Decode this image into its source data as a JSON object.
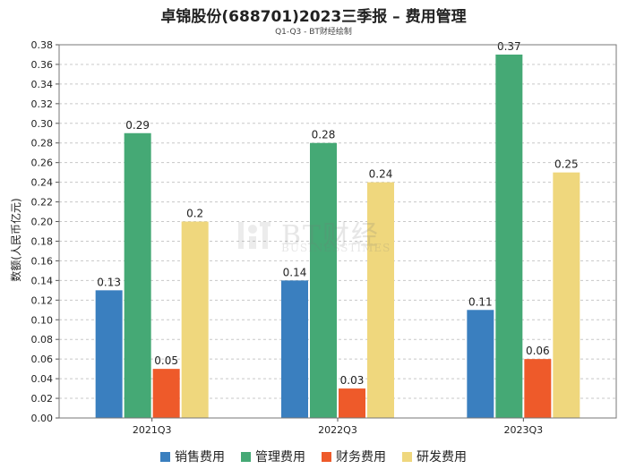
{
  "chart_data": {
    "type": "bar",
    "title": "卓锦股份(688701)2023三季报 – 费用管理",
    "subtitle": "Q1-Q3 - BT财经绘制",
    "ylabel": "数额(人民币亿元)",
    "xlabel": "",
    "categories": [
      "2021Q3",
      "2022Q3",
      "2023Q3"
    ],
    "ylim": [
      0,
      0.38
    ],
    "yticks": [
      "0.00",
      "0.02",
      "0.04",
      "0.06",
      "0.08",
      "0.10",
      "0.12",
      "0.14",
      "0.16",
      "0.18",
      "0.20",
      "0.22",
      "0.24",
      "0.26",
      "0.28",
      "0.30",
      "0.32",
      "0.34",
      "0.36",
      "0.38"
    ],
    "grid": true,
    "legend_position": "bottom",
    "series": [
      {
        "name": "销售费用",
        "color": "#3a7fbf",
        "values": [
          0.13,
          0.14,
          0.11
        ],
        "labels": [
          "0.13",
          "0.14",
          "0.11"
        ]
      },
      {
        "name": "管理费用",
        "color": "#45a975",
        "values": [
          0.29,
          0.28,
          0.37
        ],
        "labels": [
          "0.29",
          "0.28",
          "0.37"
        ]
      },
      {
        "name": "财务费用",
        "color": "#ee5a2a",
        "values": [
          0.05,
          0.03,
          0.06
        ],
        "labels": [
          "0.05",
          "0.03",
          "0.06"
        ]
      },
      {
        "name": "研发费用",
        "color": "#efd77d",
        "values": [
          0.2,
          0.24,
          0.25
        ],
        "labels": [
          "0.2",
          "0.24",
          "0.25"
        ]
      }
    ]
  },
  "watermark": {
    "main": "BT财经",
    "sub": "BUSINESSTIMES"
  }
}
